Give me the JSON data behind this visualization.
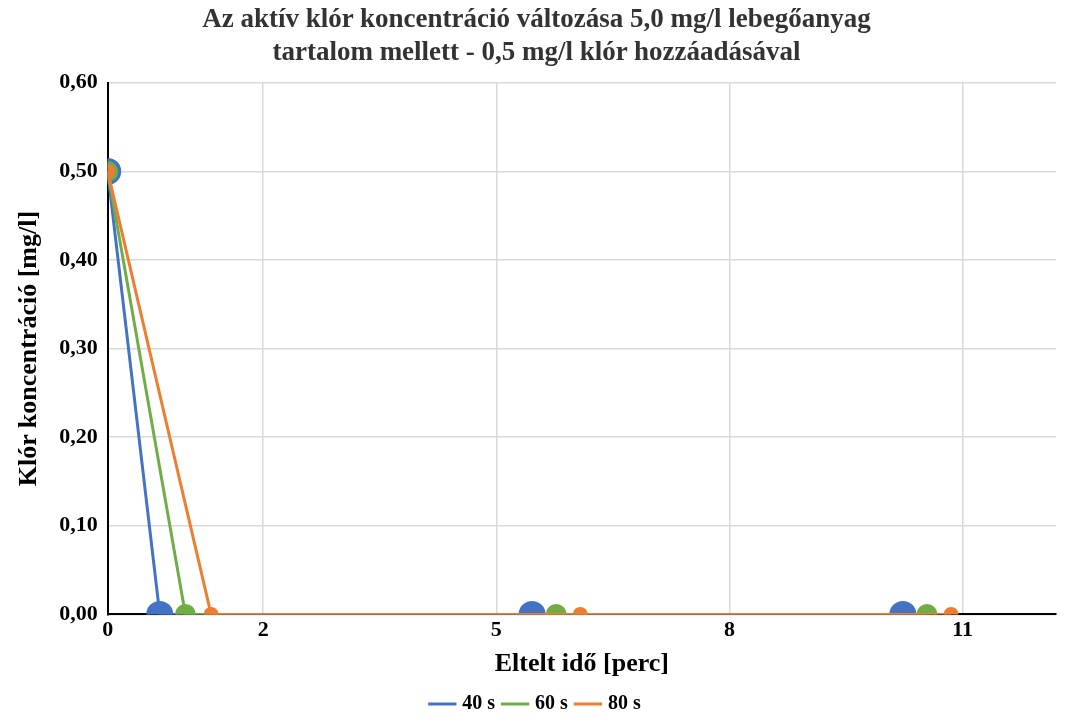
{
  "chart_data": {
    "type": "line",
    "title": [
      "Az aktív klór koncentráció változása 5,0 mg/l lebegőanyag",
      "tartalom mellett - 0,5 mg/l klór hozzáadásával"
    ],
    "xlabel": "Eltelt idő [perc]",
    "ylabel": "Klór koncentráció [mg/l]",
    "series": [
      {
        "name": "40 s",
        "color": "#4472c4",
        "x": [
          0,
          0.67,
          5.46,
          10.23
        ],
        "values": [
          0.5,
          0,
          0,
          0
        ]
      },
      {
        "name": "60 s",
        "color": "#70ad47",
        "x": [
          0,
          1.0,
          5.77,
          10.54
        ],
        "values": [
          0.5,
          0,
          0,
          0
        ]
      },
      {
        "name": "80 s",
        "color": "#ed7d31",
        "x": [
          0,
          1.33,
          6.08,
          10.85
        ],
        "values": [
          0.5,
          0,
          0,
          0
        ]
      }
    ],
    "xlim": [
      0,
      12.2
    ],
    "xticks": [
      0,
      2,
      5,
      8,
      11
    ],
    "ylim": [
      0,
      0.6
    ],
    "yticks": [
      {
        "value": 0,
        "label": "0,00"
      },
      {
        "value": 0.1,
        "label": "0,10"
      },
      {
        "value": 0.2,
        "label": "0,20"
      },
      {
        "value": 0.3,
        "label": "0,30"
      },
      {
        "value": 0.4,
        "label": "0,40"
      },
      {
        "value": 0.5,
        "label": "0,50"
      },
      {
        "value": 0.6,
        "label": "0,60"
      }
    ],
    "grid": true,
    "legend": "bottom",
    "marker": "circle",
    "line_style": "solid"
  }
}
